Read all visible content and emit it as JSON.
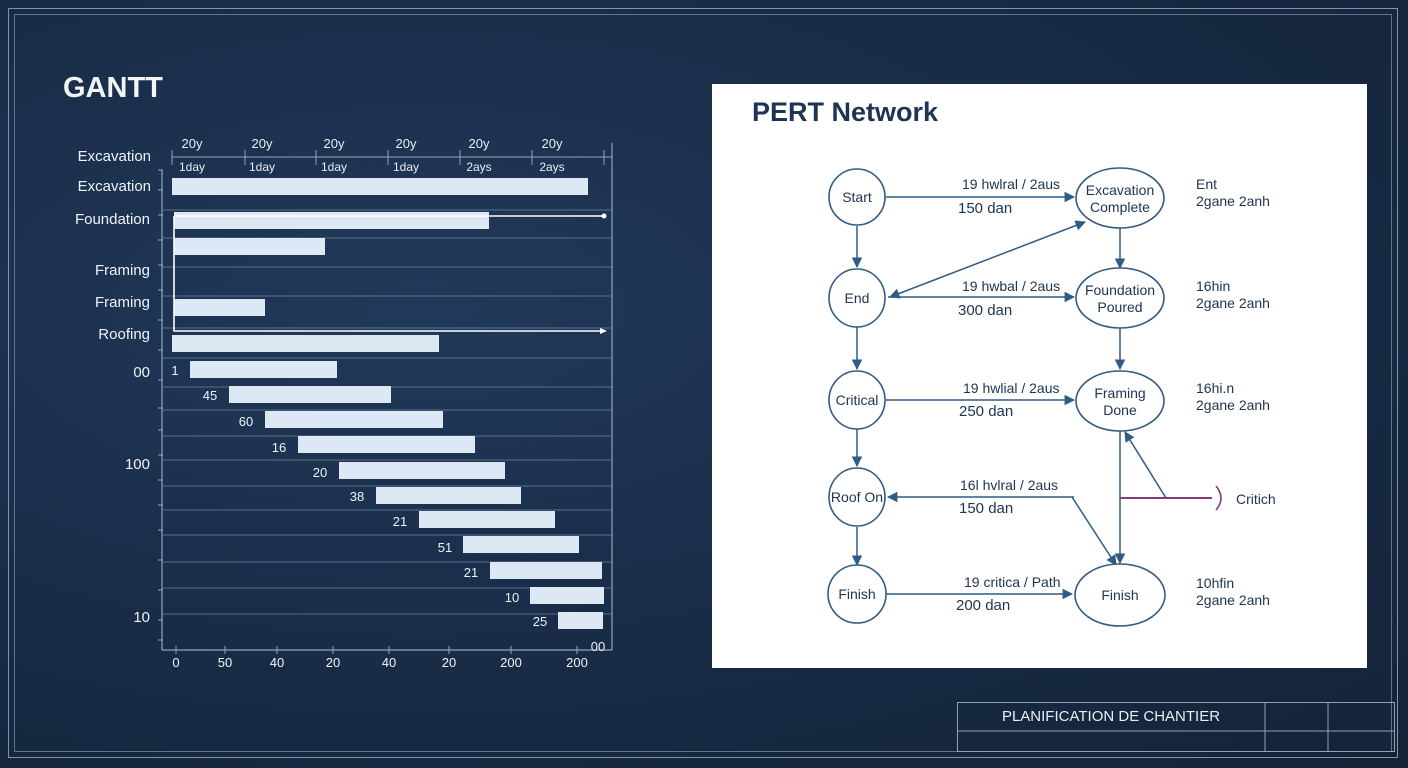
{
  "gantt": {
    "title": "GANTT",
    "header_top": [
      "20y",
      "20y",
      "20y",
      "20y",
      "20y",
      "20y"
    ],
    "header_bottom": [
      "1day",
      "1day",
      "1day",
      "1day",
      "2ays",
      "2ays"
    ],
    "row_labels": [
      "Excavation",
      "Excavation",
      "Foundation",
      "Framing",
      "Framing",
      "Roofing",
      "00",
      "100",
      "10"
    ],
    "bar_numbers": [
      "1",
      "45",
      "60",
      "16",
      "20",
      "38",
      "21",
      "51",
      "21",
      "10",
      "25",
      "00"
    ],
    "x_ticks": [
      "0",
      "50",
      "40",
      "20",
      "40",
      "20",
      "200",
      "200"
    ]
  },
  "pert": {
    "title": "PERT Network",
    "nodes": {
      "start": "Start",
      "end": "End",
      "critical": "Critical",
      "roof_on": "Roof On",
      "finish_left": "Finish",
      "excavation_complete": [
        "Excavation",
        "Complete"
      ],
      "foundation_poured": [
        "Foundation",
        "Poured"
      ],
      "framing_done": [
        "Framing",
        "Done"
      ],
      "finish_right": "Finish"
    },
    "edge_labels": [
      [
        "19 hwlral / 2aus",
        "150 dan"
      ],
      [
        "19 hwbal / 2aus",
        "300 dan"
      ],
      [
        "19 hwlial / 2aus",
        "250 dan"
      ],
      [
        "16l hvlral / 2aus",
        "150 dan"
      ],
      [
        "19 critica / Path",
        "200 dan"
      ]
    ],
    "side_notes": [
      [
        "Ent",
        "2gane 2anh"
      ],
      [
        "16hin",
        "2gane 2anh"
      ],
      [
        "16hi.n",
        "2gane 2anh"
      ],
      [
        "10hfin",
        "2gane 2anh"
      ]
    ],
    "critical_label": "Critich",
    "critical_color": "#8a3a78",
    "line_color": "#2f5c85"
  },
  "title_block": {
    "label": "PLANIFICATION DE CHANTIER"
  }
}
